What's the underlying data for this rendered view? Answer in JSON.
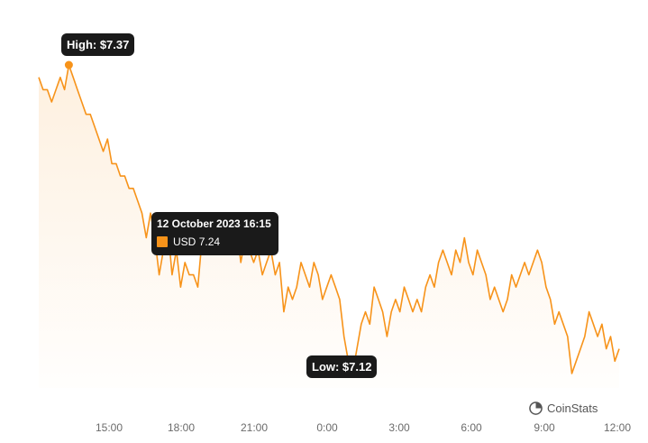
{
  "chart_data": {
    "type": "area",
    "currency": "USD",
    "color": "#f7931a",
    "x_ticks": [
      "15:00",
      "18:00",
      "21:00",
      "0:00",
      "3:00",
      "6:00",
      "9:00",
      "12:00"
    ],
    "ylim": [
      7.08,
      7.4
    ],
    "grid": false,
    "legend": "none",
    "high_label": "High: $7.37",
    "low_label": "Low: $7.12",
    "tooltip": {
      "date": "12 October 2023 16:15",
      "label": "USD",
      "value": "7.24"
    },
    "hover_index": 30,
    "series": [
      {
        "values": [
          7.36,
          7.35,
          7.35,
          7.34,
          7.35,
          7.36,
          7.35,
          7.37,
          7.36,
          7.35,
          7.34,
          7.33,
          7.33,
          7.32,
          7.31,
          7.3,
          7.31,
          7.29,
          7.29,
          7.28,
          7.28,
          7.27,
          7.27,
          7.26,
          7.25,
          7.23,
          7.25,
          7.23,
          7.2,
          7.22,
          7.24,
          7.2,
          7.22,
          7.19,
          7.21,
          7.2,
          7.2,
          7.19,
          7.23,
          7.22,
          7.24,
          7.25,
          7.23,
          7.25,
          7.24,
          7.23,
          7.24,
          7.21,
          7.23,
          7.22,
          7.21,
          7.22,
          7.2,
          7.21,
          7.22,
          7.2,
          7.21,
          7.17,
          7.19,
          7.18,
          7.19,
          7.21,
          7.2,
          7.19,
          7.21,
          7.2,
          7.18,
          7.19,
          7.2,
          7.19,
          7.18,
          7.15,
          7.13,
          7.12,
          7.14,
          7.16,
          7.17,
          7.16,
          7.19,
          7.18,
          7.17,
          7.15,
          7.17,
          7.18,
          7.17,
          7.19,
          7.18,
          7.17,
          7.18,
          7.17,
          7.19,
          7.2,
          7.19,
          7.21,
          7.22,
          7.21,
          7.2,
          7.22,
          7.21,
          7.23,
          7.21,
          7.2,
          7.22,
          7.21,
          7.2,
          7.18,
          7.19,
          7.18,
          7.17,
          7.18,
          7.2,
          7.19,
          7.2,
          7.21,
          7.2,
          7.21,
          7.22,
          7.21,
          7.19,
          7.18,
          7.16,
          7.17,
          7.16,
          7.15,
          7.12,
          7.13,
          7.14,
          7.15,
          7.17,
          7.16,
          7.15,
          7.16,
          7.14,
          7.15,
          7.13,
          7.14
        ]
      }
    ]
  },
  "branding": {
    "name": "CoinStats"
  }
}
